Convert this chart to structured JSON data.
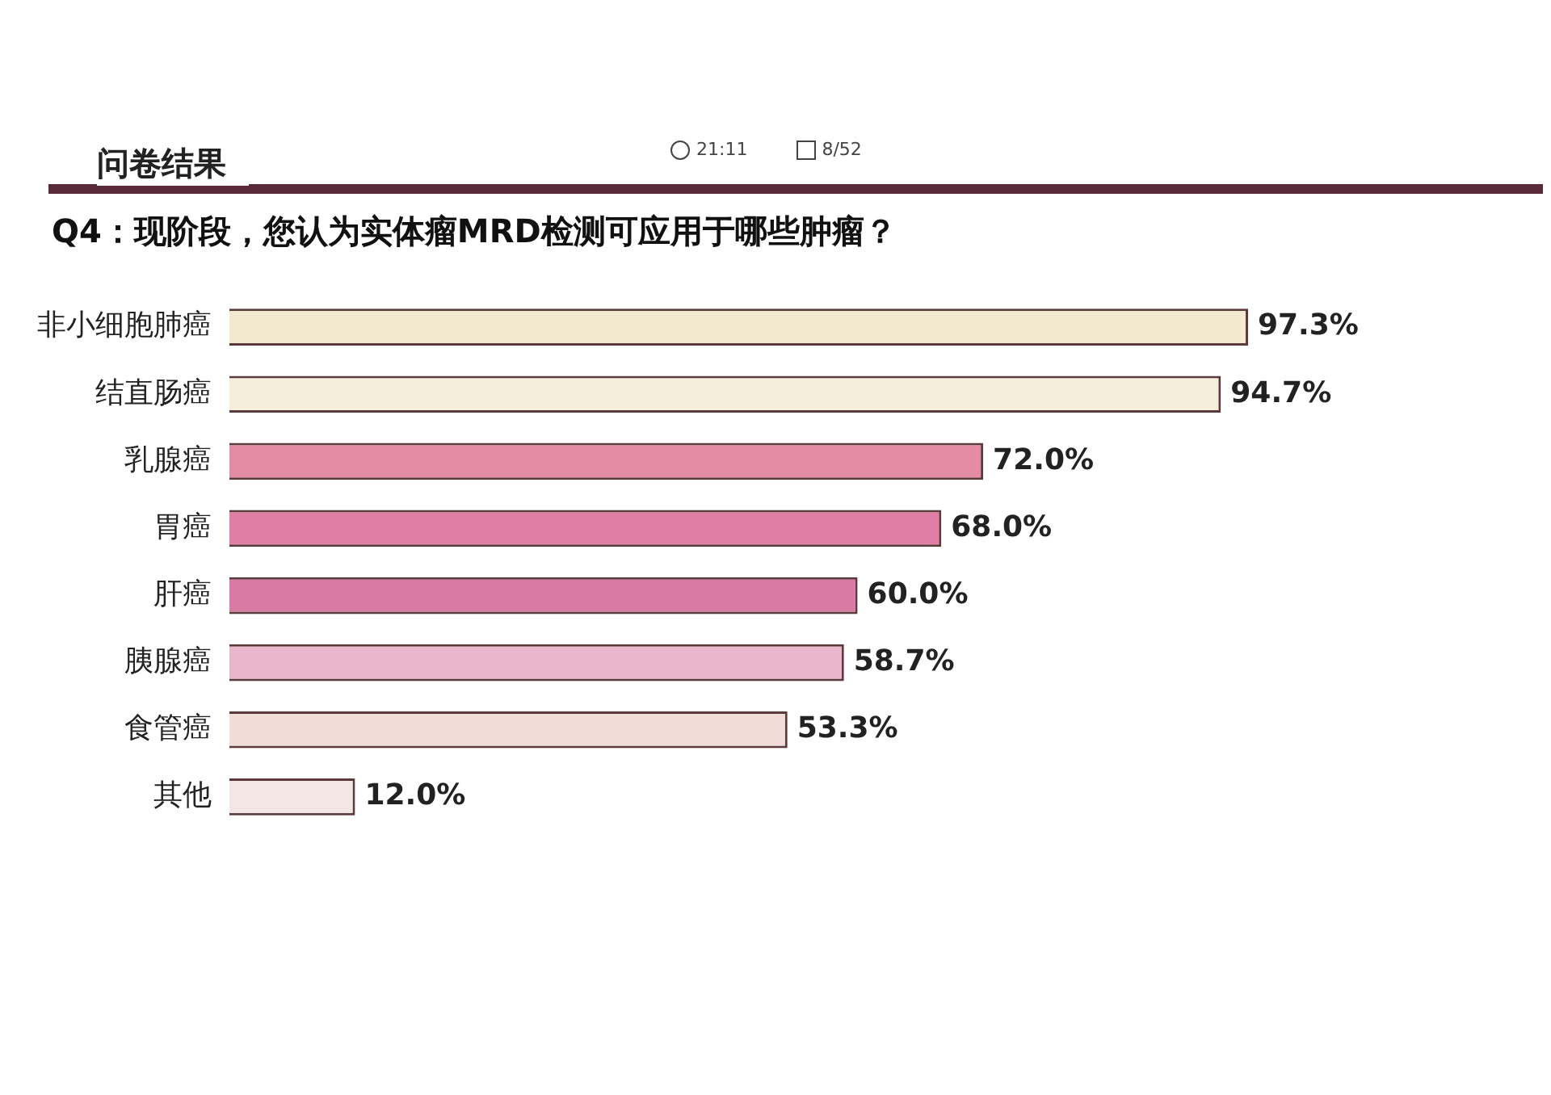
{
  "chart_data": {
    "type": "bar",
    "orientation": "horizontal",
    "subtitle": "问卷结果",
    "title": "Q4：现阶段，您认为实体瘤MRD检测可应用于哪些肿瘤？",
    "annotations": [
      "21:11",
      "8/52"
    ],
    "categories": [
      "非小细胞肺癌",
      "结直肠癌",
      "乳腺癌",
      "胃癌",
      "肝癌",
      "胰腺癌",
      "食管癌",
      "其他"
    ],
    "values": [
      97.3,
      94.7,
      72.0,
      68.0,
      60.0,
      58.7,
      53.3,
      12.0
    ],
    "value_labels": [
      "97.3%",
      "94.7%",
      "72.0%",
      "68.0%",
      "60.0%",
      "58.7%",
      "53.3%",
      "12.0%"
    ],
    "colors": [
      "#f3e9cf",
      "#f5eedd",
      "#e48ca4",
      "#e07ea6",
      "#d97aa4",
      "#e9b6cc",
      "#f1dcd8",
      "#f5e6e6"
    ],
    "legend": false
  }
}
